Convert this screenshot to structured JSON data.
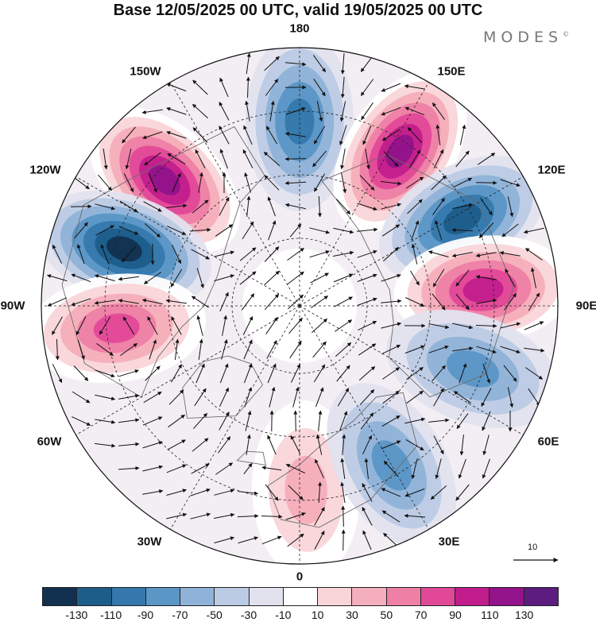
{
  "title": "Base 12/05/2025 00 UTC, valid 19/05/2025 00 UTC",
  "brand": "MODES",
  "brand_mark": "©",
  "map": {
    "projection": "north polar stereographic",
    "longitude_labels": [
      {
        "id": "180",
        "text": "180"
      },
      {
        "id": "150E",
        "text": "150E"
      },
      {
        "id": "120E",
        "text": "120E"
      },
      {
        "id": "90E",
        "text": "90E"
      },
      {
        "id": "60E",
        "text": "60E"
      },
      {
        "id": "30E",
        "text": "30E"
      },
      {
        "id": "0",
        "text": "0"
      },
      {
        "id": "30W",
        "text": "30W"
      },
      {
        "id": "60W",
        "text": "60W"
      },
      {
        "id": "90W",
        "text": "90W"
      },
      {
        "id": "120W",
        "text": "120W"
      },
      {
        "id": "150W",
        "text": "150W"
      }
    ],
    "graticule": "dashed",
    "anomaly_centers": [
      {
        "lon": -133,
        "sign": "positive",
        "max": 110
      },
      {
        "lon": -108,
        "sign": "negative",
        "max": -110
      },
      {
        "lon": -83,
        "sign": "positive",
        "max": 70
      },
      {
        "lon": 180,
        "sign": "negative",
        "max": -70
      },
      {
        "lon": 147,
        "sign": "positive",
        "max": 110
      },
      {
        "lon": 118,
        "sign": "negative",
        "max": -90
      },
      {
        "lon": 95,
        "sign": "positive",
        "max": 90
      },
      {
        "lon": 70,
        "sign": "negative",
        "max": -50
      },
      {
        "lon": 2,
        "sign": "positive",
        "max": 30
      },
      {
        "lon": 30,
        "sign": "negative",
        "max": -50
      }
    ]
  },
  "reference_vector": {
    "value": "10"
  },
  "colorbar": {
    "colors": [
      "#12304f",
      "#1d5d8a",
      "#3478ad",
      "#5a96c6",
      "#8fb2d8",
      "#bccbe4",
      "#e2e2ef",
      "#ffffff",
      "#f9d5d8",
      "#f5aebb",
      "#ee7fa5",
      "#e14898",
      "#c21d8c",
      "#92138a",
      "#5d1c80"
    ],
    "tick_labels": [
      "-130",
      "-110",
      "-90",
      "-70",
      "-50",
      "-30",
      "-10",
      "10",
      "30",
      "50",
      "70",
      "90",
      "110",
      "130"
    ]
  }
}
